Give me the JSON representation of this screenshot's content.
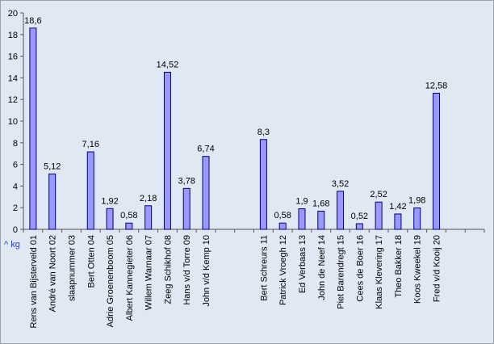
{
  "chart_data": {
    "type": "bar",
    "title": "",
    "xlabel": "",
    "ylabel": "^ kg",
    "ylim": [
      0,
      20
    ],
    "yticks": [
      0,
      2,
      4,
      6,
      8,
      10,
      12,
      14,
      16,
      18,
      20
    ],
    "grid": false,
    "legend": "none",
    "bar_color": "#9999ff",
    "bar_edge_color": "#000080",
    "categories": [
      "Rens van Bijsterveld 01",
      "André van Noort 02",
      "slaapnummer 03",
      "Bert Otten 04",
      "Adrie Groenenboom 05",
      "Albert Kannegieter 06",
      "Willem Warnaar 07",
      "Zeeg Schikhof 08",
      "Hans v/d Torre 09",
      "John v/d Kemp 10",
      "",
      "",
      "Bert Schreurs 11",
      "Patrick Vroegh 12",
      "Ed Verbaas 13",
      "John de Neef 14",
      "Piet Barendregt 15",
      "Cees de Boer 16",
      "Klaas Klevering 17",
      "Theo Bakker 18",
      "Koos Kweekel 19",
      "Fred v/d Kooij 20",
      "",
      ""
    ],
    "values": [
      18.6,
      5.12,
      null,
      7.16,
      1.92,
      0.58,
      2.18,
      14.52,
      3.78,
      6.74,
      null,
      null,
      8.3,
      0.58,
      1.9,
      1.68,
      3.52,
      0.52,
      2.52,
      1.42,
      1.98,
      12.58,
      null,
      null
    ],
    "value_labels": [
      "18,6",
      "5,12",
      "",
      "7,16",
      "1,92",
      "0,58",
      "2,18",
      "14,52",
      "3,78",
      "6,74",
      "",
      "",
      "8,3",
      "0,58",
      "1,9",
      "1,68",
      "3,52",
      "0,52",
      "2,52",
      "1,42",
      "1,98",
      "12,58",
      "",
      ""
    ]
  }
}
